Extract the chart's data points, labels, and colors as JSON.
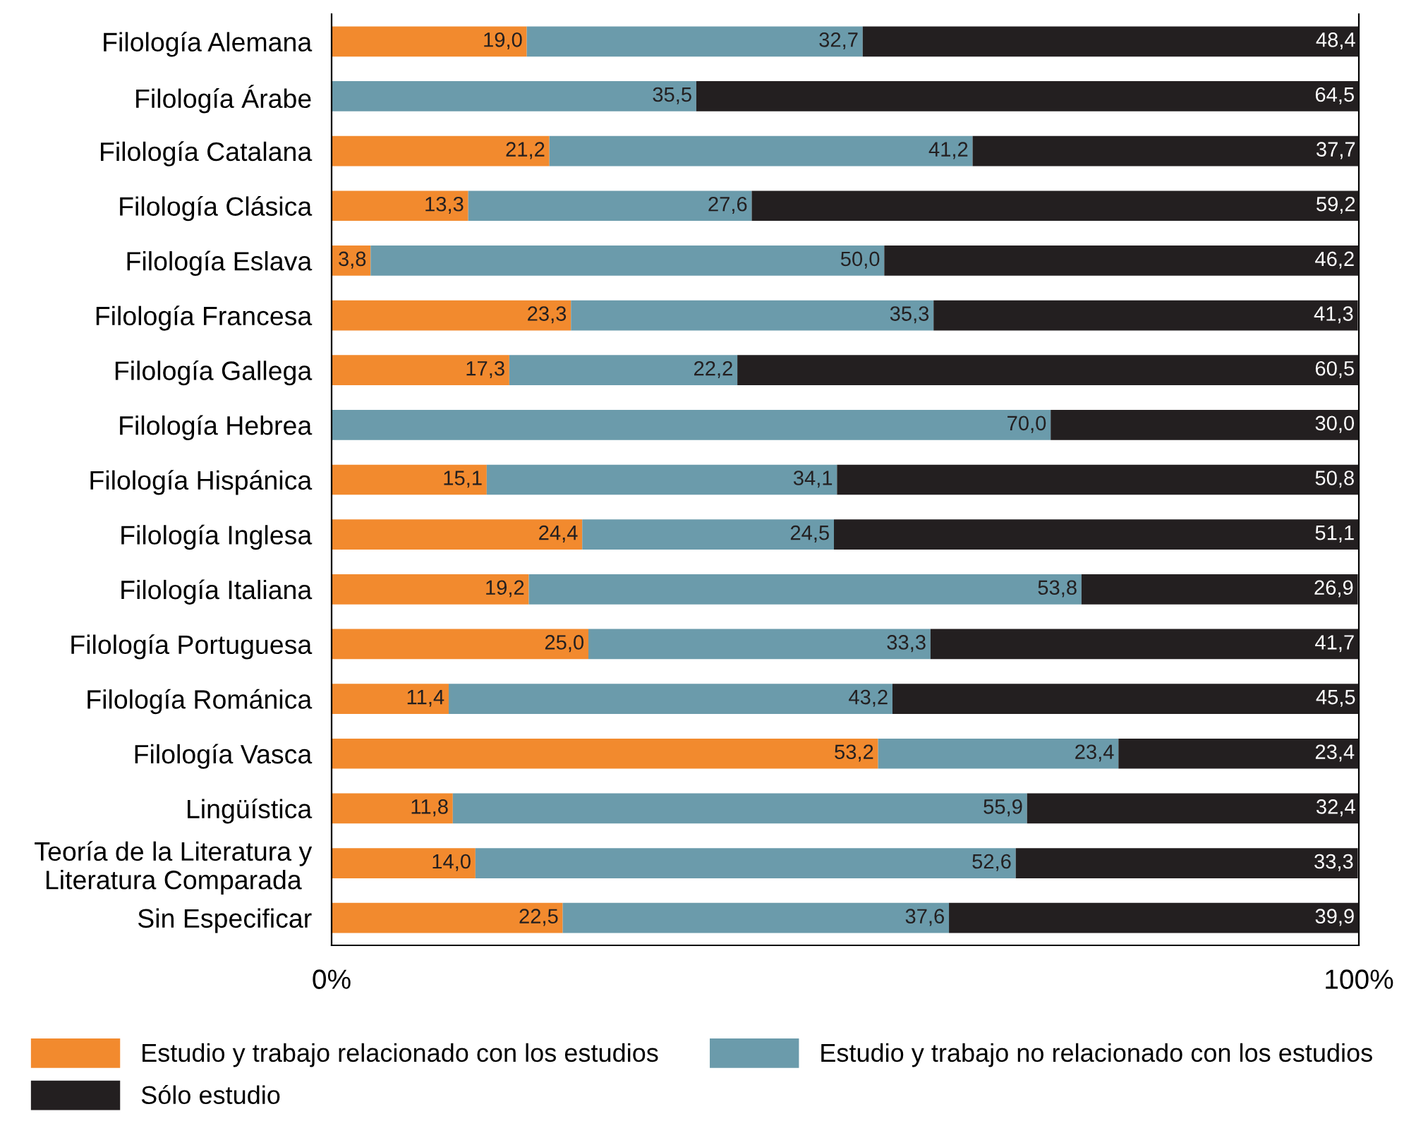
{
  "chart_data": {
    "type": "bar",
    "orientation": "horizontal",
    "stacked": true,
    "categories": [
      "Filología Alemana",
      "Filología Árabe",
      "Filología Catalana",
      "Filología Clásica",
      "Filología Eslava",
      "Filología Francesa",
      "Filología Gallega",
      "Filología Hebrea",
      "Filología Hispánica",
      "Filología Inglesa",
      "Filología Italiana",
      "Filología Portuguesa",
      "Filología Románica",
      "Filología Vasca",
      "Lingüística",
      "Teoría de la Literatura y\nLiteratura Comparada",
      "Sin Especificar"
    ],
    "series": [
      {
        "name": "Estudio y trabajo relacionado con los estudios",
        "color": "#f28a2e",
        "values": [
          19.0,
          0,
          21.2,
          13.3,
          3.8,
          23.3,
          17.3,
          0,
          15.1,
          24.4,
          19.2,
          25.0,
          11.4,
          53.2,
          11.8,
          14.0,
          22.5
        ],
        "value_labels": [
          "19,0",
          null,
          "21,2",
          "13,3",
          "3,8",
          "23,3",
          "17,3",
          null,
          "15,1",
          "24,4",
          "19,2",
          "25,0",
          "11,4",
          "53,2",
          "11,8",
          "14,0",
          "22,5"
        ]
      },
      {
        "name": "Estudio y trabajo no relacionado con los estudios",
        "color": "#6b9bab",
        "values": [
          32.7,
          35.5,
          41.2,
          27.6,
          50.0,
          35.3,
          22.2,
          70.0,
          34.1,
          24.5,
          53.8,
          33.3,
          43.2,
          23.4,
          55.9,
          52.6,
          37.6
        ],
        "value_labels": [
          "32,7",
          "35,5",
          "41,2",
          "27,6",
          "50,0",
          "35,3",
          "22,2",
          "70,0",
          "34,1",
          "24,5",
          "53,8",
          "33,3",
          "43,2",
          "23,4",
          "55,9",
          "52,6",
          "37,6"
        ]
      },
      {
        "name": "Sólo estudio",
        "color": "#231f20",
        "values": [
          48.4,
          64.5,
          37.7,
          59.2,
          46.2,
          41.3,
          60.5,
          30.0,
          50.8,
          51.1,
          26.9,
          41.7,
          45.5,
          23.4,
          32.4,
          33.3,
          39.9
        ],
        "value_labels": [
          "48,4",
          "64,5",
          "37,7",
          "59,2",
          "46,2",
          "41,3",
          "60,5",
          "30,0",
          "50,8",
          "51,1",
          "26,9",
          "41,7",
          "45,5",
          "23,4",
          "32,4",
          "33,3",
          "39,9"
        ]
      }
    ],
    "xlim": [
      0,
      100
    ],
    "xticks": [
      {
        "value": 0,
        "label": "0%"
      },
      {
        "value": 100,
        "label": "100%"
      }
    ],
    "grid": false,
    "legend": "bottom"
  }
}
